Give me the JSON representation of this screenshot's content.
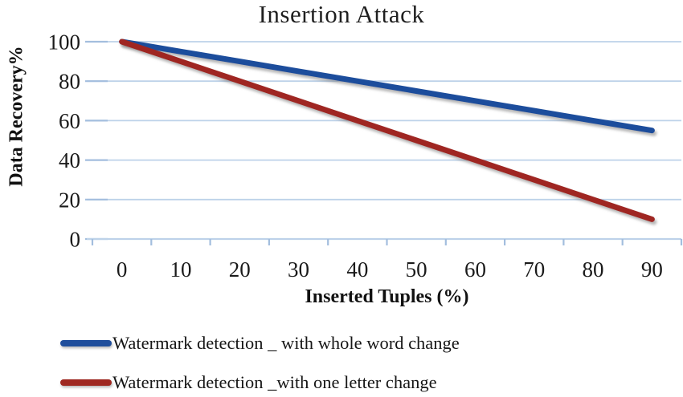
{
  "title": "Insertion Attack",
  "chart_data": {
    "type": "line",
    "title": "Insertion Attack",
    "xlabel": "Inserted Tuples (%)",
    "ylabel": "Data Recovery%",
    "categories": [
      0,
      10,
      20,
      30,
      40,
      50,
      60,
      70,
      80,
      90
    ],
    "ylim": [
      0,
      100
    ],
    "ytick_step": 20,
    "grid": "horizontal",
    "legend_position": "bottom-left",
    "series": [
      {
        "name": "Watermark detection _ with whole word change",
        "color": "#1f4e9c",
        "values": [
          100,
          95,
          90,
          85,
          80,
          75,
          70,
          65,
          60,
          55
        ]
      },
      {
        "name": "Watermark detection _with one letter change",
        "color": "#9f2821",
        "values": [
          100,
          90,
          80,
          70,
          60,
          50,
          40,
          30,
          20,
          10
        ]
      }
    ],
    "colors": {
      "gridline": "#bdd2e9",
      "tick": "#a3bede",
      "axis": "#bdd2e9",
      "tick_text": "#1a1a1a"
    }
  }
}
